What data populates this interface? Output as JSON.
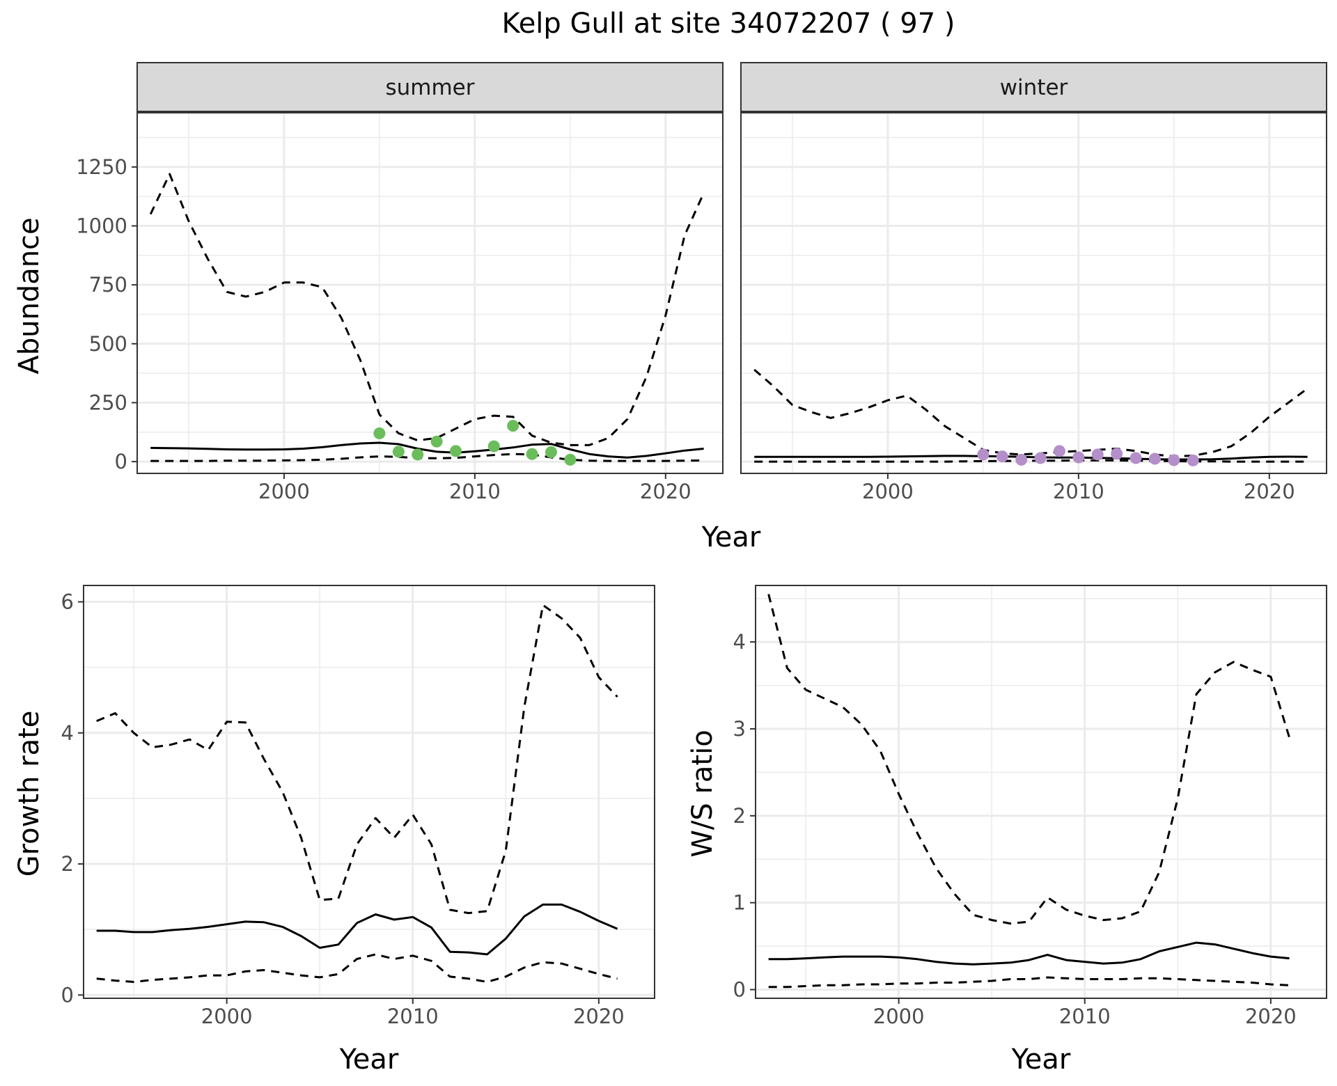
{
  "title": "Kelp Gull at site 34072207 ( 97 )",
  "chart_data": [
    {
      "id": "abundance",
      "type": "line",
      "facets": [
        "summer",
        "winter"
      ],
      "xlabel": "Year",
      "ylabel": "Abundance",
      "xlim": [
        1992.3,
        2023
      ],
      "ylim": [
        -50,
        1480
      ],
      "xticks": [
        2000,
        2010,
        2020
      ],
      "yticks": [
        0,
        250,
        500,
        750,
        1000,
        1250
      ],
      "grid": true,
      "legend": "none",
      "panels": [
        {
          "facet": "summer",
          "point_color": "#6bbd5b",
          "years": [
            1993,
            1994,
            1995,
            1996,
            1997,
            1998,
            1999,
            2000,
            2001,
            2002,
            2003,
            2004,
            2005,
            2006,
            2007,
            2008,
            2009,
            2010,
            2011,
            2012,
            2013,
            2014,
            2015,
            2016,
            2017,
            2018,
            2019,
            2020,
            2021,
            2022
          ],
          "series": [
            {
              "style": "solid",
              "values": [
                58,
                57,
                56,
                54,
                52,
                51,
                51,
                52,
                55,
                61,
                70,
                77,
                80,
                74,
                55,
                42,
                38,
                44,
                51,
                60,
                72,
                75,
                52,
                32,
                22,
                17,
                24,
                35,
                47,
                55
              ]
            },
            {
              "style": "dashed",
              "values": [
                1050,
                1220,
                1020,
                860,
                720,
                700,
                720,
                760,
                760,
                740,
                610,
                430,
                200,
                120,
                90,
                100,
                140,
                180,
                195,
                190,
                110,
                80,
                70,
                70,
                100,
                180,
                360,
                620,
                960,
                1140
              ]
            },
            {
              "style": "dashed",
              "values": [
                3,
                3,
                3,
                3,
                4,
                4,
                4,
                5,
                6,
                8,
                12,
                18,
                22,
                20,
                15,
                14,
                16,
                22,
                28,
                32,
                30,
                18,
                8,
                4,
                3,
                3,
                3,
                3,
                4,
                5
              ]
            }
          ],
          "points": {
            "x": [
              2005,
              2006,
              2007,
              2008,
              2009,
              2011,
              2012,
              2013,
              2014,
              2015
            ],
            "y": [
              120,
              42,
              30,
              85,
              45,
              65,
              152,
              32,
              40,
              8
            ]
          }
        },
        {
          "facet": "winter",
          "point_color": "#b48fca",
          "years": [
            1993,
            1994,
            1995,
            1996,
            1997,
            1998,
            1999,
            2000,
            2001,
            2002,
            2003,
            2004,
            2005,
            2006,
            2007,
            2008,
            2009,
            2010,
            2011,
            2012,
            2013,
            2014,
            2015,
            2016,
            2017,
            2018,
            2019,
            2020,
            2021,
            2022
          ],
          "series": [
            {
              "style": "solid",
              "values": [
                20,
                20,
                20,
                20,
                20,
                20,
                20,
                21,
                22,
                23,
                24,
                24,
                23,
                22,
                20,
                18,
                17,
                17,
                16,
                14,
                12,
                10,
                9,
                9,
                10,
                13,
                17,
                20,
                21,
                20
              ]
            },
            {
              "style": "dashed",
              "values": [
                390,
                320,
                240,
                210,
                185,
                205,
                230,
                260,
                280,
                220,
                150,
                100,
                50,
                35,
                30,
                35,
                40,
                45,
                50,
                55,
                45,
                30,
                22,
                25,
                40,
                65,
                120,
                190,
                250,
                310
              ]
            },
            {
              "style": "dashed",
              "values": [
                0,
                0,
                0,
                0,
                0,
                0,
                0,
                0,
                0,
                0,
                0,
                1,
                2,
                3,
                3,
                4,
                4,
                5,
                5,
                5,
                4,
                3,
                2,
                1,
                1,
                0,
                0,
                0,
                0,
                0
              ]
            }
          ],
          "points": {
            "x": [
              2005,
              2006,
              2007,
              2008,
              2009,
              2010,
              2011,
              2012,
              2013,
              2014,
              2015,
              2016
            ],
            "y": [
              30,
              22,
              8,
              15,
              45,
              18,
              30,
              33,
              15,
              12,
              6,
              5
            ]
          }
        }
      ]
    },
    {
      "id": "growth",
      "type": "line",
      "xlabel": "Year",
      "ylabel": "Growth rate",
      "xlim": [
        1992.3,
        2023
      ],
      "ylim": [
        -0.05,
        6.25
      ],
      "xticks": [
        2000,
        2010,
        2020
      ],
      "yticks": [
        0,
        2,
        4,
        6
      ],
      "grid": true,
      "years": [
        1993,
        1994,
        1995,
        1996,
        1997,
        1998,
        1999,
        2000,
        2001,
        2002,
        2003,
        2004,
        2005,
        2006,
        2007,
        2008,
        2009,
        2010,
        2011,
        2012,
        2013,
        2014,
        2015,
        2016,
        2017,
        2018,
        2019,
        2020,
        2021
      ],
      "series": [
        {
          "style": "solid",
          "values": [
            0.98,
            0.98,
            0.96,
            0.96,
            0.99,
            1.01,
            1.04,
            1.08,
            1.12,
            1.11,
            1.04,
            0.9,
            0.72,
            0.77,
            1.1,
            1.23,
            1.15,
            1.19,
            1.03,
            0.66,
            0.65,
            0.62,
            0.86,
            1.2,
            1.38,
            1.38,
            1.27,
            1.13,
            1.01
          ]
        },
        {
          "style": "dashed",
          "values": [
            4.18,
            4.3,
            4.0,
            3.78,
            3.82,
            3.9,
            3.74,
            4.17,
            4.16,
            3.6,
            3.1,
            2.4,
            1.45,
            1.47,
            2.3,
            2.7,
            2.4,
            2.75,
            2.3,
            1.3,
            1.25,
            1.28,
            2.2,
            4.4,
            5.95,
            5.75,
            5.45,
            4.85,
            4.55
          ]
        },
        {
          "style": "dashed",
          "values": [
            0.25,
            0.22,
            0.2,
            0.23,
            0.25,
            0.27,
            0.3,
            0.3,
            0.36,
            0.38,
            0.34,
            0.3,
            0.27,
            0.32,
            0.55,
            0.62,
            0.55,
            0.6,
            0.52,
            0.28,
            0.25,
            0.2,
            0.28,
            0.42,
            0.5,
            0.48,
            0.4,
            0.32,
            0.25
          ]
        }
      ]
    },
    {
      "id": "ws_ratio",
      "type": "line",
      "xlabel": "Year",
      "ylabel": "W/S ratio",
      "xlim": [
        1992.3,
        2023
      ],
      "ylim": [
        -0.1,
        4.65
      ],
      "xticks": [
        2000,
        2010,
        2020
      ],
      "yticks": [
        0,
        1,
        2,
        3,
        4
      ],
      "grid": true,
      "years": [
        1993,
        1994,
        1995,
        1996,
        1997,
        1998,
        1999,
        2000,
        2001,
        2002,
        2003,
        2004,
        2005,
        2006,
        2007,
        2008,
        2009,
        2010,
        2011,
        2012,
        2013,
        2014,
        2015,
        2016,
        2017,
        2018,
        2019,
        2020,
        2021
      ],
      "series": [
        {
          "style": "solid",
          "values": [
            0.35,
            0.35,
            0.36,
            0.37,
            0.38,
            0.38,
            0.38,
            0.37,
            0.35,
            0.32,
            0.3,
            0.29,
            0.3,
            0.31,
            0.34,
            0.4,
            0.34,
            0.32,
            0.3,
            0.31,
            0.35,
            0.44,
            0.49,
            0.54,
            0.52,
            0.47,
            0.42,
            0.38,
            0.36
          ]
        },
        {
          "style": "dashed",
          "values": [
            4.55,
            3.7,
            3.45,
            3.35,
            3.25,
            3.05,
            2.75,
            2.25,
            1.8,
            1.4,
            1.1,
            0.86,
            0.8,
            0.76,
            0.78,
            1.06,
            0.92,
            0.85,
            0.8,
            0.82,
            0.9,
            1.35,
            2.2,
            3.4,
            3.65,
            3.77,
            3.68,
            3.6,
            2.9
          ]
        },
        {
          "style": "dashed",
          "values": [
            0.03,
            0.03,
            0.04,
            0.05,
            0.05,
            0.06,
            0.06,
            0.07,
            0.07,
            0.08,
            0.08,
            0.09,
            0.1,
            0.12,
            0.12,
            0.14,
            0.13,
            0.12,
            0.12,
            0.12,
            0.13,
            0.13,
            0.12,
            0.11,
            0.1,
            0.09,
            0.08,
            0.06,
            0.05
          ]
        }
      ]
    }
  ]
}
